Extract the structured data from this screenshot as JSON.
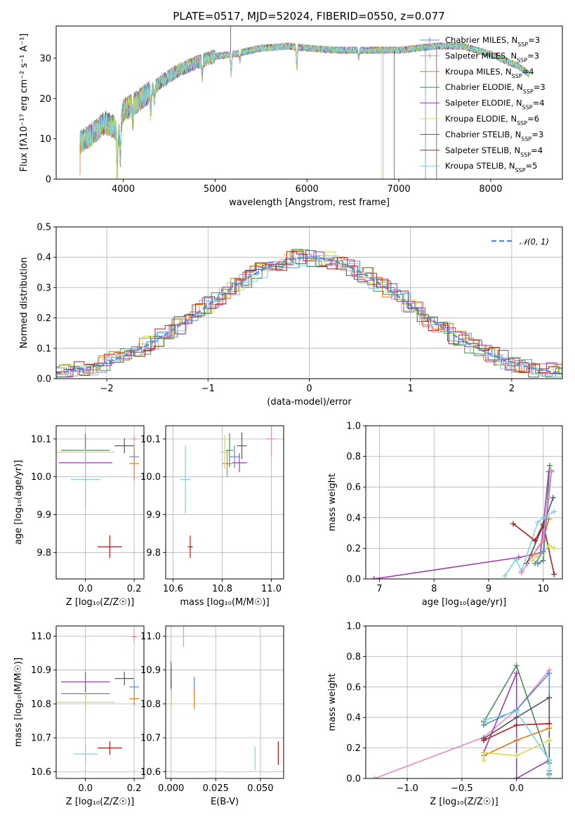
{
  "title": "PLATE=0517, MJD=52024, FIBERID=0550, z=0.077",
  "colors": {
    "Chabrier MILES": "#5b8bd6",
    "Salpeter MILES": "#e98ac2",
    "Kroupa MILES": "#e0791c",
    "Chabrier ELODIE": "#4e8a5a",
    "Salpeter ELODIE": "#a03ab5",
    "Kroupa ELODIE": "#cfe04a",
    "Chabrier STELIB": "#555555",
    "Salpeter STELIB": "#b31b1b",
    "Kroupa STELIB": "#7dd3df",
    "gaussian": "#5b8bd6"
  },
  "legend_spectrum": [
    {
      "label": "Chabrier MILES, N",
      "sub": "SSP",
      "eq": "=3",
      "key": "Chabrier MILES"
    },
    {
      "label": "Salpeter MILES, N",
      "sub": "SSP",
      "eq": "=3",
      "key": "Salpeter MILES"
    },
    {
      "label": "Kroupa MILES, N",
      "sub": "SSP",
      "eq": "=4",
      "key": "Kroupa MILES"
    },
    {
      "label": "Chabrier ELODIE, N",
      "sub": "SSP",
      "eq": "=3",
      "key": "Chabrier ELODIE"
    },
    {
      "label": "Salpeter ELODIE, N",
      "sub": "SSP",
      "eq": "=4",
      "key": "Salpeter ELODIE"
    },
    {
      "label": "Kroupa ELODIE, N",
      "sub": "SSP",
      "eq": "=6",
      "key": "Kroupa ELODIE"
    },
    {
      "label": "Chabrier STELIB, N",
      "sub": "SSP",
      "eq": "=3",
      "key": "Chabrier STELIB"
    },
    {
      "label": "Salpeter STELIB, N",
      "sub": "SSP",
      "eq": "=4",
      "key": "Salpeter STELIB"
    },
    {
      "label": "Kroupa STELIB, N",
      "sub": "SSP",
      "eq": "=5",
      "key": "Kroupa STELIB"
    }
  ],
  "legend_hist": "𝒩(0, 1)",
  "chart_data": [
    {
      "type": "line",
      "id": "spectrum",
      "xlabel": "wavelength [Angstrom, rest frame]",
      "ylabel": "Flux [fλ10⁻¹⁷ erg cm⁻² s⁻¹ A⁻¹]",
      "xlim": [
        3270,
        8780
      ],
      "ylim": [
        0,
        38
      ],
      "xticks": [
        4000,
        5000,
        6000,
        7000,
        8000
      ],
      "yticks": [
        0,
        10,
        20,
        30
      ],
      "xrange_data": [
        3530,
        8420
      ],
      "continuum_knots": [
        [
          3530,
          9
        ],
        [
          3700,
          12
        ],
        [
          3800,
          14
        ],
        [
          3900,
          13
        ],
        [
          3950,
          11
        ],
        [
          4000,
          17
        ],
        [
          4200,
          20
        ],
        [
          4400,
          24
        ],
        [
          4600,
          27
        ],
        [
          4800,
          29
        ],
        [
          5000,
          30.5
        ],
        [
          5200,
          31
        ],
        [
          5500,
          32.5
        ],
        [
          5800,
          33
        ],
        [
          6000,
          32.5
        ],
        [
          6300,
          32
        ],
        [
          6600,
          32
        ],
        [
          7000,
          32
        ],
        [
          7400,
          33
        ],
        [
          7700,
          33
        ],
        [
          8000,
          31
        ],
        [
          8300,
          28
        ],
        [
          8420,
          26
        ]
      ],
      "absorption_lines": [
        [
          3934,
          9
        ],
        [
          3969,
          8
        ],
        [
          4102,
          4
        ],
        [
          4300,
          5
        ],
        [
          4340,
          3
        ],
        [
          4861,
          4
        ],
        [
          5175,
          5
        ],
        [
          5270,
          2
        ],
        [
          5890,
          5
        ],
        [
          6563,
          2
        ],
        [
          8498,
          4
        ],
        [
          8542,
          5
        ],
        [
          8662,
          4
        ]
      ],
      "spikes": [
        [
          5170,
          38,
          "Chabrier STELIB"
        ],
        [
          6810,
          0,
          "Kroupa ELODIE"
        ],
        [
          6830,
          0,
          "Salpeter MILES"
        ],
        [
          6950,
          0,
          "Chabrier STELIB"
        ],
        [
          7290,
          0,
          "Chabrier MILES"
        ],
        [
          7410,
          0,
          "Salpeter STELIB"
        ],
        [
          7410,
          0,
          "Kroupa MILES"
        ],
        [
          3930,
          0,
          "Kroupa ELODIE"
        ],
        [
          3530,
          1,
          "Kroupa MILES"
        ]
      ]
    },
    {
      "type": "line",
      "id": "residuals",
      "xlabel": "(data-model)/error",
      "ylabel": "Normed distribution",
      "xlim": [
        -2.5,
        2.5
      ],
      "ylim": [
        0,
        0.5
      ],
      "xticks": [
        -2,
        -1,
        0,
        1,
        2
      ],
      "xtick_labels": [
        "−2",
        "−1",
        "0",
        "1",
        "2"
      ],
      "yticks": [
        0.0,
        0.1,
        0.2,
        0.3,
        0.4,
        0.5
      ],
      "ytick_labels": [
        "0.0",
        "0.1",
        "0.2",
        "0.3",
        "0.4",
        "0.5"
      ],
      "bin_width": 0.1
    },
    {
      "type": "scatter",
      "id": "age-vs-Z",
      "xlabel": "Z [log₁₀(Z/Z☉)]",
      "ylabel": "age  [log₁₀(age/yr)]",
      "xlim": [
        -0.12,
        0.24
      ],
      "ylim": [
        9.73,
        10.135
      ],
      "xticks": [
        0.0,
        0.2
      ],
      "xtick_labels": [
        "0.0",
        "0.2"
      ],
      "yticks": [
        9.8,
        9.9,
        10.0,
        10.1
      ],
      "ytick_labels": [
        "9.8",
        "9.9",
        "10.0",
        "10.1"
      ],
      "points": [
        {
          "key": "Chabrier MILES",
          "x": 0.2,
          "y": 10.053,
          "xe": 0.02,
          "ye": 0.015
        },
        {
          "key": "Salpeter MILES",
          "x": 0.2,
          "y": 10.1,
          "xe": 0.01,
          "ye": 0.008
        },
        {
          "key": "Kroupa MILES",
          "x": 0.2,
          "y": 10.035,
          "xe": 0.02,
          "ye": 0.045
        },
        {
          "key": "Chabrier ELODIE",
          "x": 0.0,
          "y": 10.07,
          "xe": 0.1,
          "ye": 0.045
        },
        {
          "key": "Salpeter ELODIE",
          "x": 0.0,
          "y": 10.037,
          "xe": 0.11,
          "ye": 0.004
        },
        {
          "key": "Kroupa ELODIE",
          "x": 0.0,
          "y": 10.065,
          "xe": 0.12,
          "ye": 0.005
        },
        {
          "key": "Chabrier STELIB",
          "x": 0.16,
          "y": 10.082,
          "xe": 0.04,
          "ye": 0.02
        },
        {
          "key": "Salpeter STELIB",
          "x": 0.1,
          "y": 9.815,
          "xe": 0.05,
          "ye": 0.03
        },
        {
          "key": "Kroupa STELIB",
          "x": 0.0,
          "y": 9.993,
          "xe": 0.06,
          "ye": 0.08
        }
      ]
    },
    {
      "type": "scatter",
      "id": "age-vs-mass",
      "xlabel": "mass [log₁₀(M/M☉)]",
      "ylabel": "",
      "xlim": [
        10.57,
        11.05
      ],
      "ylim": [
        9.73,
        10.135
      ],
      "xticks": [
        10.6,
        10.8,
        11.0
      ],
      "xtick_labels": [
        "10.6",
        "10.8",
        "11.0"
      ],
      "yticks": [
        9.8,
        9.9,
        10.0,
        10.1
      ],
      "ytick_labels": [
        "9.8",
        "9.9",
        "10.0",
        "10.1"
      ],
      "points": [
        {
          "key": "Chabrier MILES",
          "x": 10.85,
          "y": 10.053,
          "xe": 0.02,
          "ye": 0.03
        },
        {
          "key": "Salpeter MILES",
          "x": 11.0,
          "y": 10.1,
          "xe": 0.02,
          "ye": 0.045
        },
        {
          "key": "Kroupa MILES",
          "x": 10.82,
          "y": 10.035,
          "xe": 0.02,
          "ye": 0.035
        },
        {
          "key": "Chabrier ELODIE",
          "x": 10.83,
          "y": 10.07,
          "xe": 0.015,
          "ye": 0.045
        },
        {
          "key": "Salpeter ELODIE",
          "x": 10.87,
          "y": 10.037,
          "xe": 0.03,
          "ye": 0.025
        },
        {
          "key": "Kroupa ELODIE",
          "x": 10.81,
          "y": 10.065,
          "xe": 0.02,
          "ye": 0.045
        },
        {
          "key": "Chabrier STELIB",
          "x": 10.88,
          "y": 10.082,
          "xe": 0.02,
          "ye": 0.035
        },
        {
          "key": "Salpeter STELIB",
          "x": 10.67,
          "y": 9.815,
          "xe": 0.01,
          "ye": 0.03
        },
        {
          "key": "Kroupa STELIB",
          "x": 10.65,
          "y": 9.993,
          "xe": 0.02,
          "ye": 0.09
        }
      ]
    },
    {
      "type": "line",
      "id": "weight-vs-age",
      "xlabel": "age  [log₁₀(age/yr)]",
      "ylabel": "mass weight",
      "xlim": [
        6.75,
        10.35
      ],
      "ylim": [
        0,
        1
      ],
      "xticks": [
        7,
        8,
        9,
        10
      ],
      "xtick_labels": [
        "7",
        "8",
        "9",
        "10"
      ],
      "yticks": [
        0.0,
        0.2,
        0.4,
        0.6,
        0.8,
        1.0
      ],
      "ytick_labels": [
        "0.0",
        "0.2",
        "0.4",
        "0.6",
        "0.8",
        "1.0"
      ],
      "series": [
        {
          "key": "Salpeter ELODIE",
          "x": [
            6.9,
            9.55,
            9.95,
            10.1
          ],
          "y": [
            0.0,
            0.14,
            0.17,
            0.7
          ]
        },
        {
          "key": "Chabrier ELODIE",
          "x": [
            9.9,
            10.0,
            10.12
          ],
          "y": [
            0.1,
            0.12,
            0.74
          ]
        },
        {
          "key": "Kroupa STELIB",
          "x": [
            9.3,
            9.5,
            9.6,
            9.9,
            10.0,
            10.2
          ],
          "y": [
            0.02,
            0.13,
            0.05,
            0.37,
            0.4,
            0.44
          ]
        },
        {
          "key": "Salpeter STELIB",
          "x": [
            9.45,
            9.85,
            10.0,
            10.2
          ],
          "y": [
            0.36,
            0.25,
            0.36,
            0.03
          ]
        },
        {
          "key": "Chabrier STELIB",
          "x": [
            9.7,
            10.0,
            10.18
          ],
          "y": [
            0.1,
            0.35,
            0.53
          ]
        },
        {
          "key": "Kroupa MILES",
          "x": [
            9.8,
            10.0,
            10.1
          ],
          "y": [
            0.15,
            0.25,
            0.39
          ]
        },
        {
          "key": "Kroupa ELODIE",
          "x": [
            9.8,
            9.9,
            10.0,
            10.1,
            10.2
          ],
          "y": [
            0.12,
            0.15,
            0.17,
            0.22,
            0.2
          ]
        },
        {
          "key": "Chabrier MILES",
          "x": [
            9.85,
            10.0,
            10.15
          ],
          "y": [
            0.1,
            0.18,
            0.7
          ]
        },
        {
          "key": "Salpeter MILES",
          "x": [
            9.6,
            10.0,
            10.15
          ],
          "y": [
            0.04,
            0.26,
            0.71
          ]
        }
      ]
    },
    {
      "type": "scatter",
      "id": "mass-vs-Z",
      "xlabel": "Z [log₁₀(Z/Z☉)]",
      "ylabel": "mass [log₁₀(M/M☉)]",
      "xlim": [
        -0.12,
        0.24
      ],
      "ylim": [
        10.58,
        11.03
      ],
      "xticks": [
        0.0,
        0.2
      ],
      "xtick_labels": [
        "0.0",
        "0.2"
      ],
      "yticks": [
        10.6,
        10.7,
        10.8,
        10.9,
        11.0
      ],
      "ytick_labels": [
        "10.6",
        "10.7",
        "10.8",
        "10.9",
        "11.0"
      ],
      "points": [
        {
          "key": "Chabrier MILES",
          "x": 0.2,
          "y": 10.85,
          "xe": 0.02,
          "ye": 0.02
        },
        {
          "key": "Salpeter MILES",
          "x": 0.2,
          "y": 10.998,
          "xe": 0.01,
          "ye": 0.02
        },
        {
          "key": "Kroupa MILES",
          "x": 0.2,
          "y": 10.815,
          "xe": 0.02,
          "ye": 0.02
        },
        {
          "key": "Chabrier ELODIE",
          "x": 0.0,
          "y": 10.83,
          "xe": 0.1,
          "ye": 0.02
        },
        {
          "key": "Salpeter ELODIE",
          "x": 0.0,
          "y": 10.865,
          "xe": 0.1,
          "ye": 0.03
        },
        {
          "key": "Kroupa ELODIE",
          "x": 0.0,
          "y": 10.805,
          "xe": 0.12,
          "ye": 0.03
        },
        {
          "key": "Chabrier STELIB",
          "x": 0.16,
          "y": 10.875,
          "xe": 0.04,
          "ye": 0.02
        },
        {
          "key": "Salpeter STELIB",
          "x": 0.1,
          "y": 10.67,
          "xe": 0.05,
          "ye": 0.02
        },
        {
          "key": "Kroupa STELIB",
          "x": 0.0,
          "y": 10.652,
          "xe": 0.05,
          "ye": 0.03
        }
      ]
    },
    {
      "type": "scatter",
      "id": "mass-vs-EBV",
      "xlabel": "E(B-V)",
      "ylabel": "",
      "xlim": [
        -0.003,
        0.063
      ],
      "ylim": [
        10.58,
        11.03
      ],
      "xticks": [
        0.0,
        0.025,
        0.05
      ],
      "xtick_labels": [
        "0.000",
        "0.025",
        "0.050"
      ],
      "yticks": [
        10.6,
        10.7,
        10.8,
        10.9,
        11.0
      ],
      "ytick_labels": [
        "10.6",
        "10.7",
        "10.8",
        "10.9",
        "11.0"
      ],
      "points": [
        {
          "key": "Chabrier MILES",
          "x": 0.013,
          "y": 10.85,
          "xe": 0,
          "ye": 0.03
        },
        {
          "key": "Salpeter MILES",
          "x": 0.007,
          "y": 10.998,
          "xe": 0,
          "ye": 0.03
        },
        {
          "key": "Kroupa MILES",
          "x": 0.013,
          "y": 10.815,
          "xe": 0,
          "ye": 0.03
        },
        {
          "key": "Chabrier ELODIE",
          "x": 0.0,
          "y": 10.83,
          "xe": 0,
          "ye": 0.04
        },
        {
          "key": "Salpeter ELODIE",
          "x": 0.0,
          "y": 10.865,
          "xe": 0,
          "ye": 0.06
        },
        {
          "key": "Kroupa ELODIE",
          "x": 0.0,
          "y": 10.805,
          "xe": 0,
          "ye": 0.04
        },
        {
          "key": "Chabrier STELIB",
          "x": 0.0,
          "y": 10.875,
          "xe": 0,
          "ye": 0.03
        },
        {
          "key": "Salpeter STELIB",
          "x": 0.06,
          "y": 10.655,
          "xe": 0,
          "ye": 0.035
        },
        {
          "key": "Kroupa STELIB",
          "x": 0.047,
          "y": 10.64,
          "xe": 0,
          "ye": 0.035
        }
      ]
    },
    {
      "type": "line",
      "id": "weight-vs-Z",
      "xlabel": "Z [log₁₀(Z/Z☉)]",
      "ylabel": "mass weight",
      "xlim": [
        -1.38,
        0.42
      ],
      "ylim": [
        0,
        1
      ],
      "xticks": [
        -1.0,
        -0.5,
        0.0
      ],
      "xtick_labels": [
        "−1.0",
        "−0.5",
        "0.0"
      ],
      "yticks": [
        0.0,
        0.2,
        0.4,
        0.6,
        0.8,
        1.0
      ],
      "ytick_labels": [
        "0.0",
        "0.2",
        "0.4",
        "0.6",
        "0.8",
        "1.0"
      ],
      "series": [
        {
          "key": "Salpeter MILES",
          "x": [
            -1.3,
            -0.3,
            0.0,
            0.3
          ],
          "y": [
            0.0,
            0.27,
            0.45,
            0.71
          ]
        },
        {
          "key": "Chabrier MILES",
          "x": [
            -0.3,
            0.0,
            0.3,
            0.3
          ],
          "y": [
            0.35,
            0.45,
            0.69,
            0.05
          ]
        },
        {
          "key": "Chabrier ELODIE",
          "x": [
            -0.3,
            0.0,
            0.3
          ],
          "y": [
            0.37,
            0.74,
            0.1
          ]
        },
        {
          "key": "Salpeter ELODIE",
          "x": [
            -0.3,
            0.0,
            0.0,
            0.3
          ],
          "y": [
            0.17,
            0.69,
            0.0,
            0.12
          ]
        },
        {
          "key": "Chabrier STELIB",
          "x": [
            -0.3,
            0.0,
            0.3,
            0.3
          ],
          "y": [
            0.26,
            0.4,
            0.53,
            0.03
          ]
        },
        {
          "key": "Salpeter STELIB",
          "x": [
            -0.3,
            0.0,
            0.3
          ],
          "y": [
            0.25,
            0.35,
            0.36
          ]
        },
        {
          "key": "Kroupa MILES",
          "x": [
            -0.3,
            0.0,
            0.3
          ],
          "y": [
            0.15,
            0.25,
            0.33
          ]
        },
        {
          "key": "Kroupa ELODIE",
          "x": [
            -0.3,
            -0.3,
            0.0,
            0.3
          ],
          "y": [
            0.12,
            0.17,
            0.15,
            0.25
          ]
        },
        {
          "key": "Kroupa STELIB",
          "x": [
            -0.3,
            0.0,
            0.3,
            0.3
          ],
          "y": [
            0.38,
            0.44,
            0.12,
            0.02
          ]
        }
      ]
    }
  ]
}
